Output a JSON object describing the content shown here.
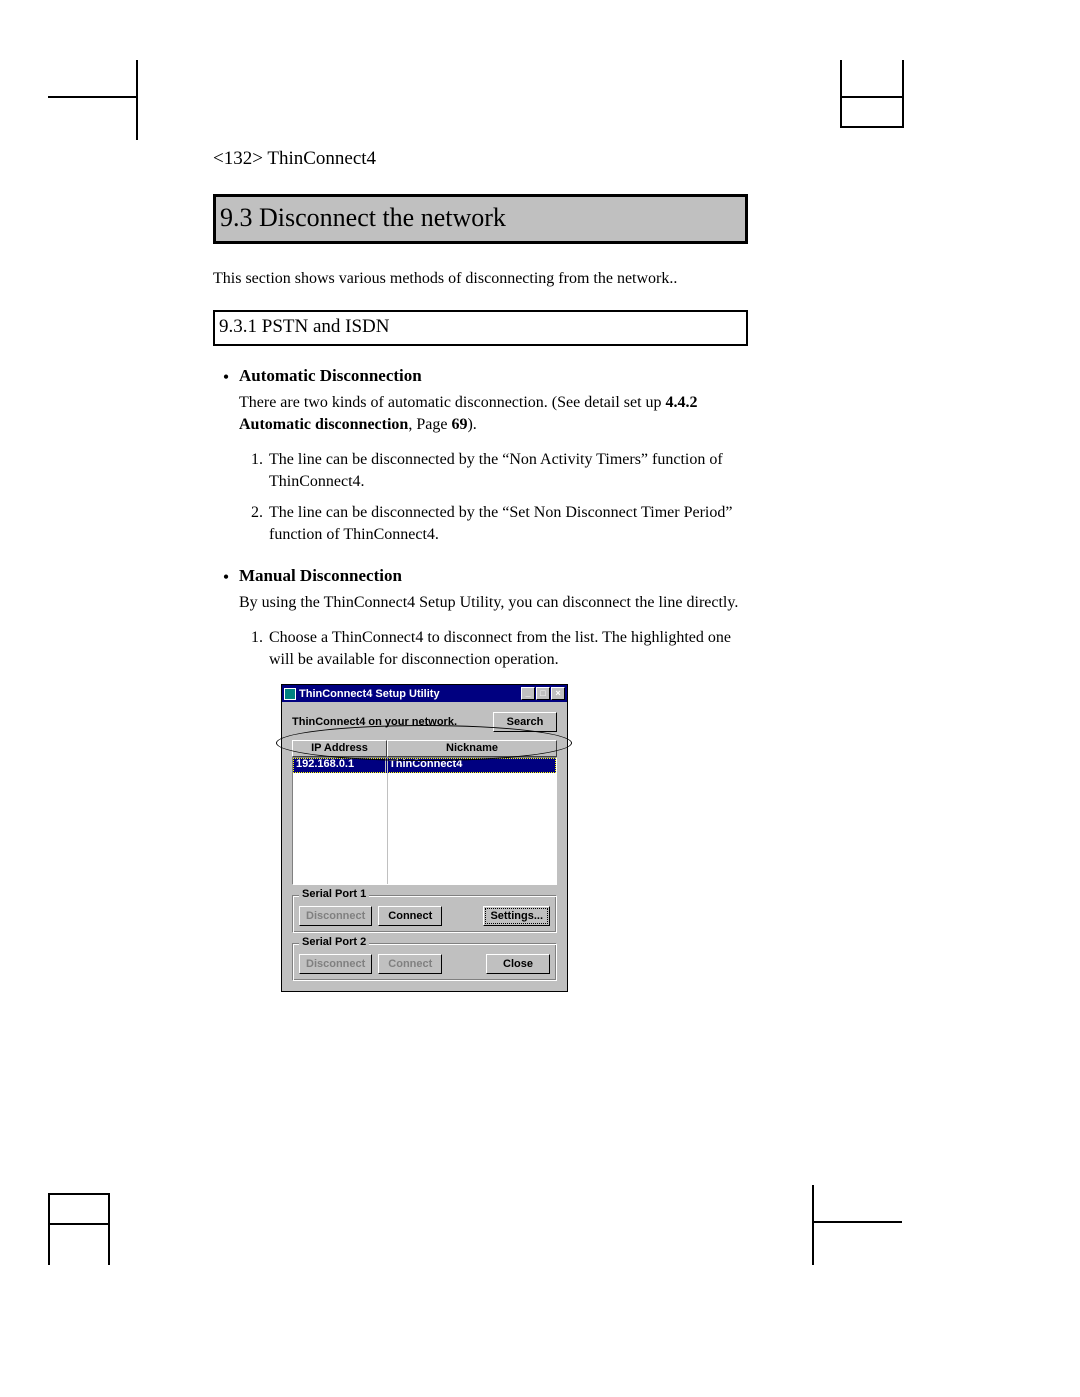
{
  "page": {
    "header": "<132> ThinConnect4",
    "section_number": "9.3",
    "section_title": "Disconnect the network",
    "intro": "This section shows various methods of disconnecting from the network..",
    "subsection_number": "9.3.1",
    "subsection_title": "PSTN and ISDN",
    "auto": {
      "heading": "Automatic Disconnection",
      "para_a": "There are two kinds of automatic disconnection. (See detail set up ",
      "para_b_bold": "4.4.2 Automatic disconnection",
      "para_c": ", Page ",
      "para_d_bold": "69",
      "para_e": ").",
      "item1": "The line can be disconnected by the “Non Activity Timers” function of ThinConnect4.",
      "item2": "The line can be disconnected by the “Set Non Disconnect Timer Period” function of ThinConnect4."
    },
    "manual": {
      "heading": "Manual Disconnection",
      "para": "By using the ThinConnect4 Setup Utility, you can disconnect the line directly.",
      "item1": "Choose a ThinConnect4 to disconnect from the list.  The highlighted one will be available for disconnection operation."
    }
  },
  "dialog": {
    "title": "ThinConnect4 Setup Utility",
    "label_top": "ThinConnect4 on your network.",
    "search_btn": "Search",
    "col_ip": "IP Address",
    "col_nick": "Nickname",
    "row_ip": "192.168.0.1",
    "row_nick": "ThinConnect4",
    "port1_legend": "Serial Port 1",
    "port2_legend": "Serial Port 2",
    "disconnect_btn": "Disconnect",
    "connect_btn": "Connect",
    "settings_btn": "Settings...",
    "close_btn": "Close",
    "minimize_glyph": "_",
    "maximize_glyph": "□",
    "close_glyph": "×",
    "colors": {
      "titlebar_bg": "#000080",
      "titlebar_fg": "#ffffff",
      "face": "#c0c0c0",
      "highlight_bg": "#000080",
      "highlight_fg": "#ffffff",
      "disabled_text": "#808080"
    }
  },
  "style": {
    "section_bg": "#c0c0c0",
    "section_fontsize_pt": 20,
    "body_fontsize_pt": 12,
    "font_family": "Times New Roman"
  }
}
